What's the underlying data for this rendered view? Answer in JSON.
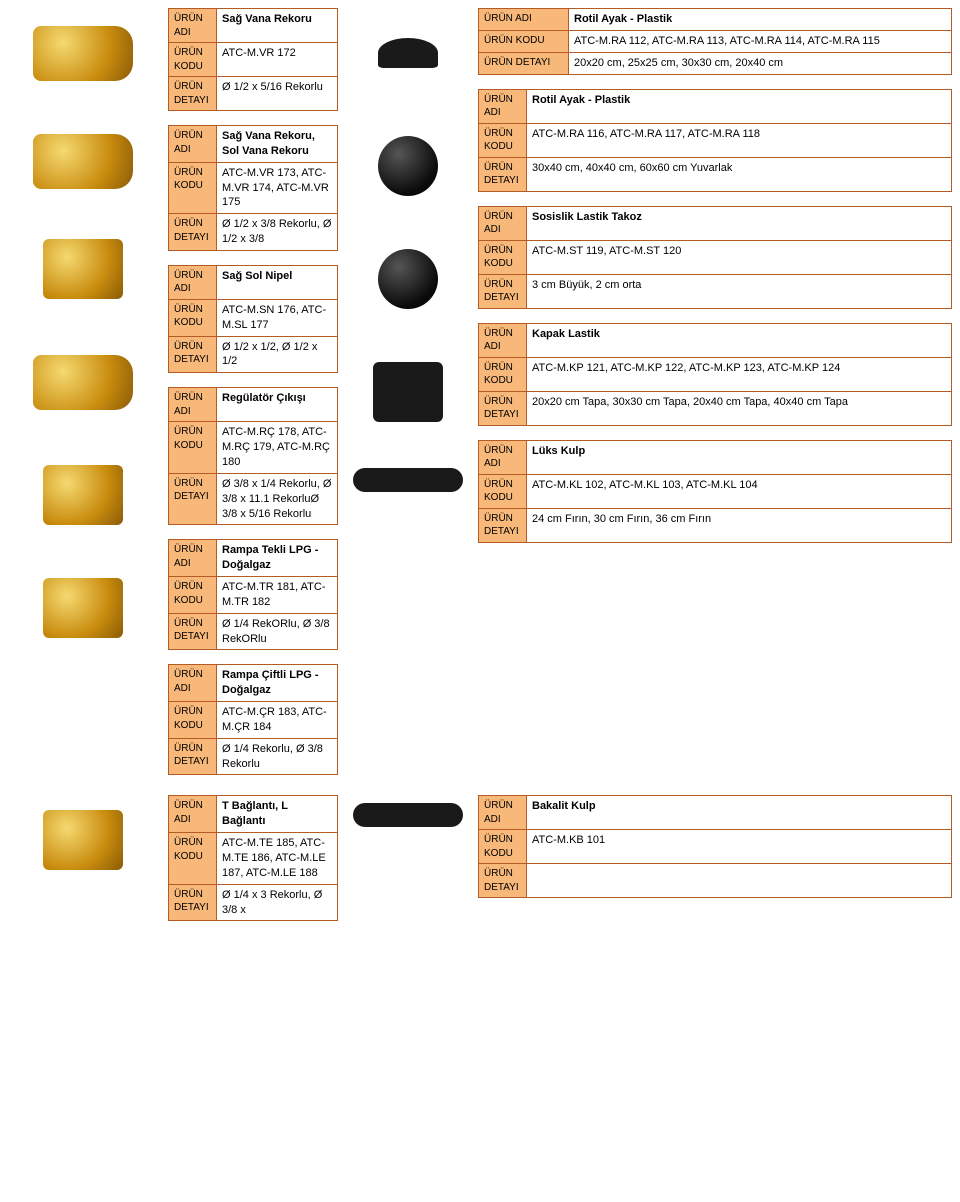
{
  "colors": {
    "border": "#b55b24",
    "label_bg": "#f7b87a",
    "text": "#000000",
    "brass_light": "#f5d971",
    "brass_dark": "#8a5a08",
    "black": "#1a1a1a"
  },
  "labels": {
    "name": "ÜRÜN ADI",
    "code": "ÜRÜN KODU",
    "detail": "ÜRÜN DETAYI"
  },
  "left": [
    {
      "name": "Sağ Vana Rekoru",
      "code": "ATC-M.VR 172",
      "detail": "Ø 1/2 x 5/16 Rekorlu"
    },
    {
      "name": "Sağ Vana Rekoru, Sol Vana Rekoru",
      "code": "ATC-M.VR 173, ATC-M.VR 174, ATC-M.VR 175",
      "detail": "Ø 1/2 x 3/8 Rekorlu, Ø 1/2 x 3/8"
    },
    {
      "name": "Sağ Sol Nipel",
      "code": "ATC-M.SN 176, ATC-M.SL 177",
      "detail": "Ø 1/2 x 1/2, Ø 1/2 x 1/2"
    },
    {
      "name": "Regülatör Çıkışı",
      "code": "ATC-M.RÇ 178, ATC-M.RÇ 179, ATC-M.RÇ 180",
      "detail": "Ø 3/8 x 1/4 Rekorlu, Ø 3/8 x 11.1 RekorluØ 3/8 x 5/16 Rekorlu"
    },
    {
      "name": "Rampa Tekli LPG - Doğalgaz",
      "code": "ATC-M.TR 181, ATC-M.TR 182",
      "detail": "Ø 1/4 RekORlu, Ø 3/8 RekORlu"
    },
    {
      "name": "Rampa Çiftli LPG - Doğalgaz",
      "code": "ATC-M.ÇR 183, ATC-M.ÇR 184",
      "detail": "Ø 1/4 Rekorlu, Ø 3/8 Rekorlu"
    }
  ],
  "right": [
    {
      "name": "Rotil Ayak - Plastik",
      "code": "ATC-M.RA 112, ATC-M.RA 113, ATC-M.RA 114, ATC-M.RA 115",
      "detail": "20x20 cm, 25x25 cm, 30x30 cm, 20x40 cm",
      "wide": true
    },
    {
      "name": "Rotil Ayak - Plastik",
      "code": "ATC-M.RA 116, ATC-M.RA 117, ATC-M.RA 118",
      "detail": "30x40 cm, 40x40 cm, 60x60 cm Yuvarlak"
    },
    {
      "name": "Sosislik Lastik Takoz",
      "code": "ATC-M.ST 119, ATC-M.ST 120",
      "detail": "3 cm Büyük, 2 cm orta"
    },
    {
      "name": "Kapak Lastik",
      "code": "ATC-M.KP 121, ATC-M.KP 122, ATC-M.KP 123, ATC-M.KP 124",
      "detail": "20x20 cm Tapa, 30x30 cm Tapa, 20x40 cm Tapa, 40x40 cm Tapa"
    },
    {
      "name": "Lüks Kulp",
      "code": "ATC-M.KL 102, ATC-M.KL 103, ATC-M.KL 104",
      "detail": "24 cm Fırın, 30 cm Fırın, 36 cm Fırın"
    }
  ],
  "bottom_left": {
    "name": "T Bağlantı, L Bağlantı",
    "code": "ATC-M.TE 185, ATC-M.TE 186, ATC-M.LE 187, ATC-M.LE 188",
    "detail": "Ø 1/4 x 3 Rekorlu, Ø 3/8 x"
  },
  "bottom_right": {
    "name": "Bakalit Kulp",
    "code": "ATC-M.KB 101",
    "detail": ""
  }
}
